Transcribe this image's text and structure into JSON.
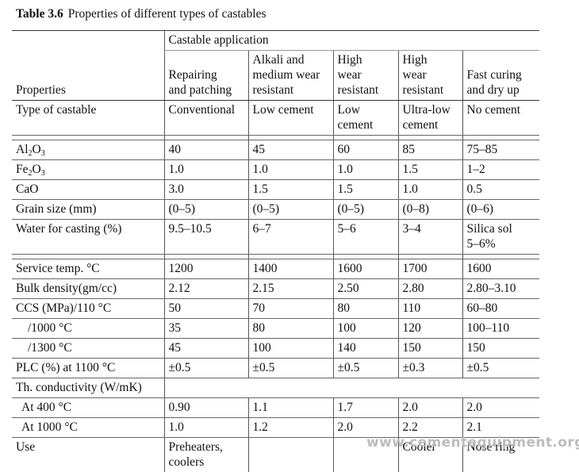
{
  "caption": {
    "label": "Table 3.6",
    "title": "Properties of different types of castables"
  },
  "header": {
    "properties": "Properties",
    "group": "Castable application",
    "columns": [
      [
        "Repairing",
        "and patching"
      ],
      [
        "Alkali and",
        "medium wear",
        "resistant"
      ],
      [
        "High",
        "wear",
        "resistant"
      ],
      [
        "High",
        "wear",
        "resistant"
      ],
      [
        "Fast curing",
        "and dry up"
      ]
    ]
  },
  "type_row": {
    "label": "Type of castable",
    "values": [
      [
        "Conventional"
      ],
      [
        "Low cement"
      ],
      [
        "Low",
        "cement"
      ],
      [
        "Ultra-low",
        "cement"
      ],
      [
        "No cement"
      ]
    ]
  },
  "al2o3": {
    "base": "Al",
    "sub1": "2",
    "mid": "O",
    "sub2": "3",
    "values": [
      "40",
      "45",
      "60",
      "85",
      "75–85"
    ]
  },
  "fe2o3": {
    "base": "Fe",
    "sub1": "2",
    "mid": "O",
    "sub2": "3",
    "values": [
      "1.0",
      "1.0",
      "1.0",
      "1.5",
      "1–2"
    ]
  },
  "cao": {
    "label": "CaO",
    "values": [
      "3.0",
      "1.5",
      "1.5",
      "1.0",
      "0.5"
    ]
  },
  "grain": {
    "label": "Grain size (mm)",
    "values": [
      "(0–5)",
      "(0–5)",
      "(0–5)",
      "(0–8)",
      "(0–6)"
    ]
  },
  "water": {
    "label": "Water for casting (%)",
    "values": [
      "9.5–10.5",
      "6–7",
      "5–6",
      "3–4"
    ],
    "last": [
      "Silica sol",
      "5–6%"
    ]
  },
  "service": {
    "label": "Service temp. °C",
    "values": [
      "1200",
      "1400",
      "1600",
      "1700",
      "1600"
    ]
  },
  "bulk": {
    "label": "Bulk density(gm/cc)",
    "values": [
      "2.12",
      "2.15",
      "2.50",
      "2.80",
      "2.80–3.10"
    ]
  },
  "ccs110": {
    "label": "CCS (MPa)/110 °C",
    "values": [
      "50",
      "70",
      "80",
      "110",
      "60–80"
    ]
  },
  "ccs1000": {
    "label": "/1000 °C",
    "values": [
      "35",
      "80",
      "100",
      "120",
      "100–110"
    ]
  },
  "ccs1300": {
    "label": "/1300 °C",
    "values": [
      "45",
      "100",
      "140",
      "150",
      "150"
    ]
  },
  "plc": {
    "label": "PLC (%) at 1100 °C",
    "values": [
      "±0.5",
      "±0.5",
      "±0.5",
      "±0.3",
      "±0.5"
    ]
  },
  "thcond": {
    "label": "Th. conductivity (W/mK)"
  },
  "at400": {
    "label": "At 400 °C",
    "values": [
      "0.90",
      "1.1",
      "1.7",
      "2.0",
      "2.0"
    ]
  },
  "at1000": {
    "label": "At 1000 °C",
    "values": [
      "1.0",
      "1.2",
      "2.0",
      "2.2",
      "2.1"
    ]
  },
  "use": {
    "label": "Use",
    "values": [
      [
        "Preheaters,",
        "coolers"
      ],
      [],
      [],
      [
        "Cooler"
      ],
      [
        "Nose ring"
      ]
    ]
  },
  "watermark": "www.cementequipment.org"
}
